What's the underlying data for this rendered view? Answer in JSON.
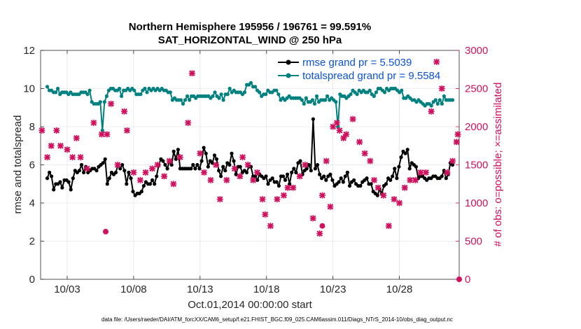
{
  "chart_data": {
    "type": "line",
    "title": "Northern Hemisphere 195956 / 196761 = 99.591%",
    "subtitle": "SAT_HORIZONTAL_WIND @ 250 hPa",
    "xlabel": "Oct.01,2014 00:00:00 start",
    "ylabel": "rmse and totalspread",
    "y2label": "# of obs: o=possible; ×=assimilated",
    "xlim": [
      1,
      32.5
    ],
    "ylim": [
      0,
      12
    ],
    "y2lim": [
      0,
      3000
    ],
    "x_ticks": [
      3,
      8,
      13,
      18,
      23,
      28
    ],
    "x_tick_labels": [
      "10/03",
      "10/08",
      "10/13",
      "10/18",
      "10/23",
      "10/28"
    ],
    "y_ticks": [
      0,
      2,
      4,
      6,
      8,
      10,
      12
    ],
    "y_tick_labels": [
      "0",
      "2",
      "4",
      "6",
      "8",
      "10",
      "12"
    ],
    "y2_ticks": [
      0,
      500,
      1000,
      1500,
      2000,
      2500,
      3000
    ],
    "y2_tick_labels": [
      "0",
      "500",
      "1000",
      "1500",
      "2000",
      "2500",
      "3000"
    ],
    "legend_position": "top-right",
    "colors": {
      "rmse": "#000000",
      "spread": "#00807f",
      "obs": "#d0115e",
      "legend_text": "#0b52d8",
      "grid": "#e6e6e6"
    },
    "series": [
      {
        "name": "rmse grand pr = 5.5039",
        "values": [
          5.3,
          5.6,
          5.4,
          4.7,
          5.0,
          5.0,
          5.1,
          4.8,
          5.2,
          5.2,
          5.1,
          4.7,
          5.3,
          5.7,
          5.6,
          5.7,
          6.0,
          5.6,
          5.9,
          5.6,
          5.7,
          5.8,
          5.8,
          5.7,
          5.9,
          6.0,
          6.1,
          6.3,
          5.0,
          5.3,
          5.6,
          5.5,
          5.6,
          6.0,
          5.8,
          6.0,
          5.7,
          5.0,
          5.6,
          5.3,
          4.6,
          4.4,
          4.5,
          4.5,
          4.6,
          4.9,
          5.1,
          5.0,
          5.0,
          5.2,
          5.0,
          5.4,
          6.0,
          6.3,
          6.2,
          6.0,
          5.8,
          6.2,
          6.0,
          6.7,
          6.3,
          6.8,
          5.8,
          5.8,
          5.8,
          5.8,
          5.8,
          5.8,
          6.0,
          5.8,
          6.0,
          5.8,
          6.2,
          6.9,
          6.6,
          5.9,
          6.2,
          6.1,
          6.5,
          6.3,
          5.7,
          5.4,
          5.9,
          5.7,
          6.1,
          6.0,
          6.6,
          6.2,
          5.5,
          5.9,
          5.9,
          5.6,
          5.7,
          5.6,
          5.9,
          5.9,
          5.4,
          5.4,
          5.2,
          5.5,
          5.4,
          5.3,
          5.4,
          5.0,
          5.2,
          5.3,
          5.1,
          5.1,
          4.9,
          5.4,
          5.4,
          5.2,
          5.5,
          5.0,
          5.6,
          5.8,
          5.6,
          6.1,
          6.2,
          5.5,
          5.7,
          5.8,
          6.0,
          5.7,
          8.4,
          5.8,
          6.0,
          5.5,
          5.3,
          5.4,
          5.2,
          5.4,
          5.5,
          5.2,
          4.9,
          5.0,
          5.1,
          5.3,
          5.1,
          5.4,
          5.6,
          4.9,
          5.1,
          5.2,
          5.0,
          4.9,
          4.9,
          5.1,
          5.2,
          5.3,
          5.0,
          5.0,
          4.6,
          4.5,
          4.4,
          4.7,
          4.5,
          4.9,
          5.0,
          5.3,
          5.2,
          5.4,
          5.8,
          5.3,
          5.9,
          6.4,
          6.7,
          6.6,
          6.8,
          5.8,
          6.1,
          6.0,
          5.9,
          5.3,
          5.4,
          5.4,
          5.3,
          5.2,
          5.3,
          5.3,
          5.4,
          5.4,
          5.3,
          5.3,
          5.4,
          5.7,
          5.3,
          5.5,
          6.1,
          6.0
        ]
      },
      {
        "name": "totalspread grand pr = 9.5584",
        "values": [
          10.1,
          9.9,
          9.9,
          9.8,
          9.8,
          10.0,
          9.7,
          9.8,
          9.8,
          9.8,
          9.7,
          9.8,
          9.7,
          9.7,
          9.7,
          9.7,
          9.8,
          9.8,
          9.8,
          9.7,
          9.9,
          9.3,
          9.2,
          9.2,
          9.2,
          9.3,
          7.8,
          9.3,
          9.6,
          9.9,
          10.0,
          10.0,
          9.9,
          9.9,
          10.0,
          9.6,
          9.9,
          9.9,
          10.0,
          9.9,
          10.0,
          9.9,
          9.7,
          9.7,
          9.7,
          9.9,
          10.0,
          9.8,
          10.0,
          9.9,
          10.0,
          9.9,
          10.0,
          9.9,
          10.0,
          9.9,
          9.9,
          9.8,
          9.8,
          9.4,
          9.5,
          9.4,
          9.4,
          9.4,
          9.2,
          9.4,
          9.6,
          9.4,
          9.6,
          9.6,
          9.5,
          9.6,
          9.6,
          9.6,
          9.6,
          9.6,
          9.6,
          9.5,
          9.6,
          9.8,
          9.6,
          9.5,
          9.7,
          9.4,
          9.7,
          9.7,
          10.0,
          9.8,
          9.9,
          9.8,
          9.8,
          9.8,
          9.7,
          9.8,
          10.2,
          10.2,
          10.3,
          10.1,
          10.1,
          9.9,
          9.8,
          9.6,
          9.7,
          9.7,
          9.9,
          9.8,
          9.8,
          9.9,
          9.9,
          9.7,
          9.4,
          9.5,
          9.4,
          9.5,
          9.6,
          9.5,
          9.5,
          9.5,
          9.5,
          9.5,
          9.4,
          9.2,
          9.5,
          9.3,
          9.3,
          9.4,
          9.2,
          9.6,
          9.3,
          9.4,
          9.4,
          9.4,
          9.6,
          9.4,
          9.5,
          9.4,
          9.3,
          8.0,
          9.7,
          9.6,
          9.6,
          9.5,
          9.6,
          9.7,
          9.9,
          9.8,
          9.7,
          9.9,
          9.8,
          9.9,
          9.8,
          9.8,
          9.9,
          9.7,
          9.6,
          9.8,
          10.0,
          10.0,
          9.9,
          9.8,
          10.0,
          9.9,
          10.0,
          10.0,
          10.0,
          9.9,
          9.8,
          9.9,
          9.5,
          9.5,
          9.6,
          9.5,
          9.4,
          9.4,
          9.3,
          9.4,
          9.3,
          9.2,
          9.1,
          9.2,
          9.2,
          9.1,
          9.3,
          9.4,
          9.2,
          9.4,
          9.2,
          9.6,
          9.4,
          9.4,
          9.4,
          9.4
        ]
      }
    ],
    "obs_assimilated": [
      [
        1.1,
        1950
      ],
      [
        1.5,
        1600
      ],
      [
        1.8,
        1750
      ],
      [
        2.2,
        1950
      ],
      [
        2.5,
        1750
      ],
      [
        3.0,
        1700
      ],
      [
        3.4,
        1600
      ],
      [
        3.7,
        1850
      ],
      [
        4.0,
        1600
      ],
      [
        4.5,
        1450
      ],
      [
        5.0,
        2050
      ],
      [
        5.6,
        1900
      ],
      [
        6.0,
        1900
      ],
      [
        6.3,
        2300
      ],
      [
        6.8,
        1500
      ],
      [
        7.3,
        2200
      ],
      [
        7.5,
        1950
      ],
      [
        8.0,
        1400
      ],
      [
        8.5,
        1300
      ],
      [
        8.9,
        1400
      ],
      [
        9.4,
        1450
      ],
      [
        9.8,
        1500
      ],
      [
        10.3,
        1350
      ],
      [
        10.7,
        1550
      ],
      [
        11.0,
        1250
      ],
      [
        11.5,
        1600
      ],
      [
        12.1,
        2050
      ],
      [
        12.4,
        2700
      ],
      [
        13.0,
        1650
      ],
      [
        13.3,
        1400
      ],
      [
        13.8,
        1300
      ],
      [
        14.2,
        1500
      ],
      [
        14.5,
        1050
      ],
      [
        15.0,
        1300
      ],
      [
        15.6,
        1450
      ],
      [
        16.0,
        1350
      ],
      [
        16.2,
        1600
      ],
      [
        16.6,
        1500
      ],
      [
        17.0,
        1300
      ],
      [
        17.3,
        1400
      ],
      [
        17.7,
        1050
      ],
      [
        17.9,
        850
      ],
      [
        18.3,
        700
      ],
      [
        18.8,
        1050
      ],
      [
        19.3,
        1100
      ],
      [
        19.6,
        1200
      ],
      [
        20.0,
        1200
      ],
      [
        20.5,
        1350
      ],
      [
        20.9,
        1500
      ],
      [
        21.5,
        800
      ],
      [
        22.0,
        600
      ],
      [
        22.2,
        1100
      ],
      [
        22.5,
        1550
      ],
      [
        22.8,
        950
      ],
      [
        23.0,
        2000
      ],
      [
        23.3,
        2050
      ],
      [
        23.5,
        1950
      ],
      [
        23.8,
        1850
      ],
      [
        24.0,
        1900
      ],
      [
        24.5,
        2100
      ],
      [
        25.0,
        1800
      ],
      [
        25.4,
        1650
      ],
      [
        25.8,
        1550
      ],
      [
        26.1,
        1300
      ],
      [
        26.4,
        1200
      ],
      [
        26.8,
        1100
      ],
      [
        27.2,
        700
      ],
      [
        27.6,
        1050
      ],
      [
        28.0,
        1000
      ],
      [
        28.4,
        1200
      ],
      [
        28.8,
        1300
      ],
      [
        29.2,
        1300
      ],
      [
        29.6,
        1400
      ],
      [
        30.0,
        1400
      ],
      [
        30.4,
        2200
      ],
      [
        30.8,
        2850
      ],
      [
        31.2,
        2500
      ],
      [
        31.6,
        1400
      ],
      [
        32.0,
        1550
      ],
      [
        32.3,
        1800
      ],
      [
        32.4,
        1900
      ]
    ],
    "obs_possible": [
      [
        5.9,
        625
      ],
      [
        22.2,
        700
      ],
      [
        32.5,
        0
      ]
    ],
    "footnote": "data file: /Users/raeder/DAI/ATM_forcXX/CAM6_setup/f.e21.FHIST_BGC.f09_025.CAM6assim.011/Diags_NTrS_2014-10/obs_diag_output.nc"
  }
}
